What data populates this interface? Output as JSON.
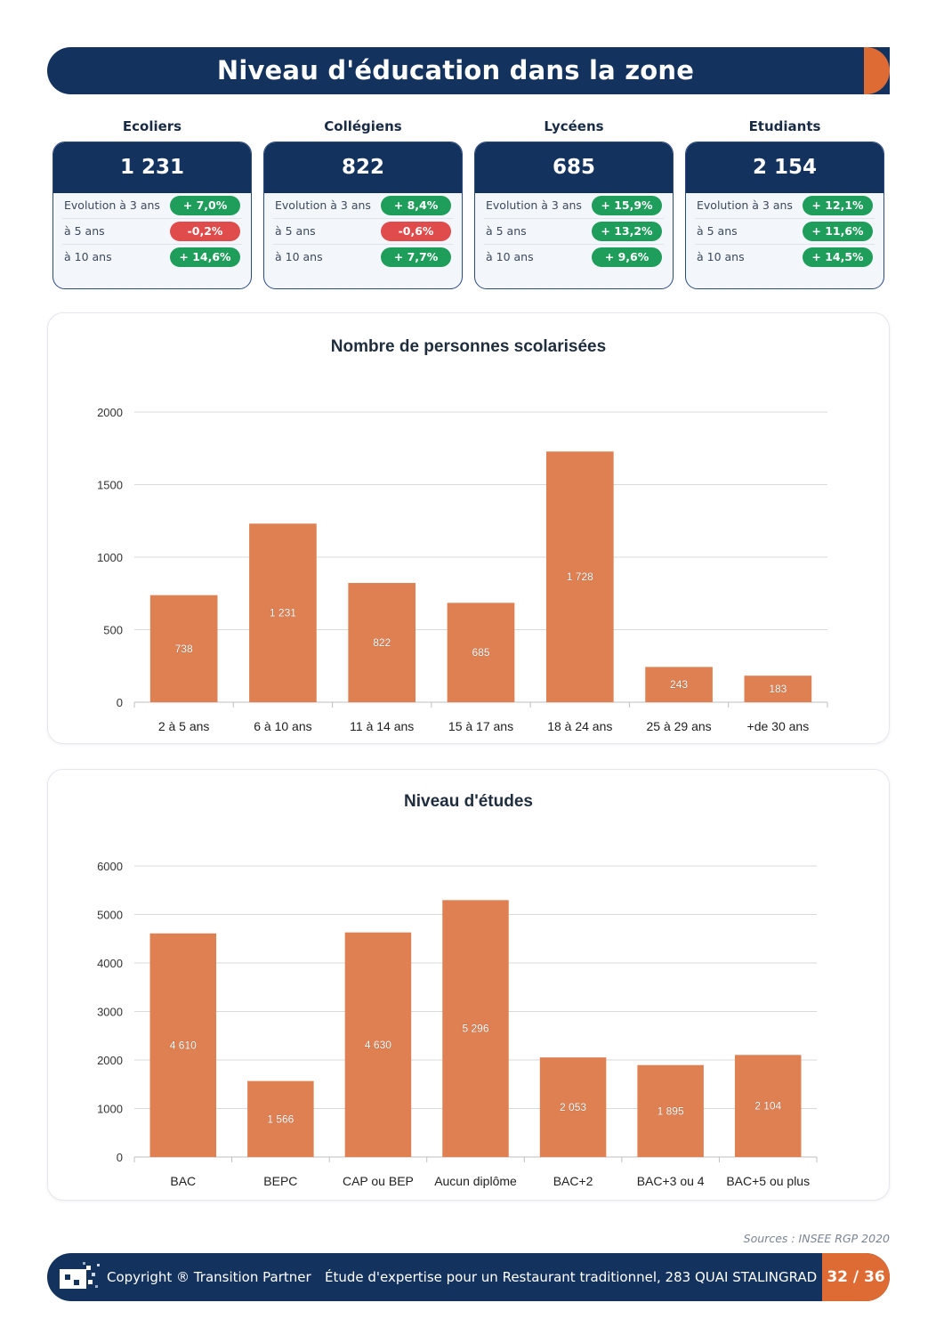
{
  "header": {
    "title": "Niveau d'éducation dans la zone"
  },
  "stats": [
    {
      "label": "Ecoliers",
      "value": "1 231",
      "rows": [
        {
          "label": "Evolution à 3 ans",
          "value": "+ 7,0%",
          "trend": "pos"
        },
        {
          "label": "à 5 ans",
          "value": "-0,2%",
          "trend": "neg"
        },
        {
          "label": "à 10 ans",
          "value": "+ 14,6%",
          "trend": "pos"
        }
      ]
    },
    {
      "label": "Collégiens",
      "value": "822",
      "rows": [
        {
          "label": "Evolution à 3 ans",
          "value": "+ 8,4%",
          "trend": "pos"
        },
        {
          "label": "à 5 ans",
          "value": "-0,6%",
          "trend": "neg"
        },
        {
          "label": "à 10 ans",
          "value": "+ 7,7%",
          "trend": "pos"
        }
      ]
    },
    {
      "label": "Lycéens",
      "value": "685",
      "rows": [
        {
          "label": "Evolution à 3 ans",
          "value": "+ 15,9%",
          "trend": "pos"
        },
        {
          "label": "à 5 ans",
          "value": "+ 13,2%",
          "trend": "pos"
        },
        {
          "label": "à 10 ans",
          "value": "+ 9,6%",
          "trend": "pos"
        }
      ]
    },
    {
      "label": "Etudiants",
      "value": "2 154",
      "rows": [
        {
          "label": "Evolution à 3 ans",
          "value": "+ 12,1%",
          "trend": "pos"
        },
        {
          "label": "à 5 ans",
          "value": "+ 11,6%",
          "trend": "pos"
        },
        {
          "label": "à 10 ans",
          "value": "+ 14,5%",
          "trend": "pos"
        }
      ]
    }
  ],
  "chart_data": [
    {
      "type": "bar",
      "title": "Nombre de personnes scolarisées",
      "categories": [
        "2 à 5 ans",
        "6 à 10 ans",
        "11 à 14 ans",
        "15 à 17 ans",
        "18 à 24 ans",
        "25 à 29 ans",
        "+de 30 ans"
      ],
      "values": [
        738,
        1231,
        822,
        685,
        1728,
        243,
        183
      ],
      "data_labels": [
        "738",
        "1 231",
        "822",
        "685",
        "1 728",
        "243",
        "183"
      ],
      "yticks": [
        0,
        500,
        1000,
        1500,
        2000
      ],
      "ylim": [
        0,
        2000
      ],
      "grid": true,
      "color": "#df8052"
    },
    {
      "type": "bar",
      "title": "Niveau d'études",
      "categories": [
        "BAC",
        "BEPC",
        "CAP ou BEP",
        "Aucun diplôme",
        "BAC+2",
        "BAC+3 ou 4",
        "BAC+5 ou plus"
      ],
      "values": [
        4610,
        1566,
        4630,
        5296,
        2053,
        1895,
        2104
      ],
      "data_labels": [
        "4 610",
        "1 566",
        "4 630",
        "5 296",
        "2 053",
        "1 895",
        "2 104"
      ],
      "yticks": [
        0,
        1000,
        2000,
        3000,
        4000,
        5000,
        6000
      ],
      "ylim": [
        0,
        6000
      ],
      "grid": true,
      "color": "#df8052"
    }
  ],
  "sources": "Sources : INSEE RGP 2020",
  "footer": {
    "copyright": "Copyright ® Transition Partner",
    "study": "Étude d'expertise pour un Restaurant traditionnel, 283 QUAI STALINGRAD",
    "page": "32 / 36"
  },
  "colors": {
    "navy": "#14325e",
    "orange": "#df6b34",
    "green": "#1f9e5b",
    "red": "#e04c4c"
  }
}
